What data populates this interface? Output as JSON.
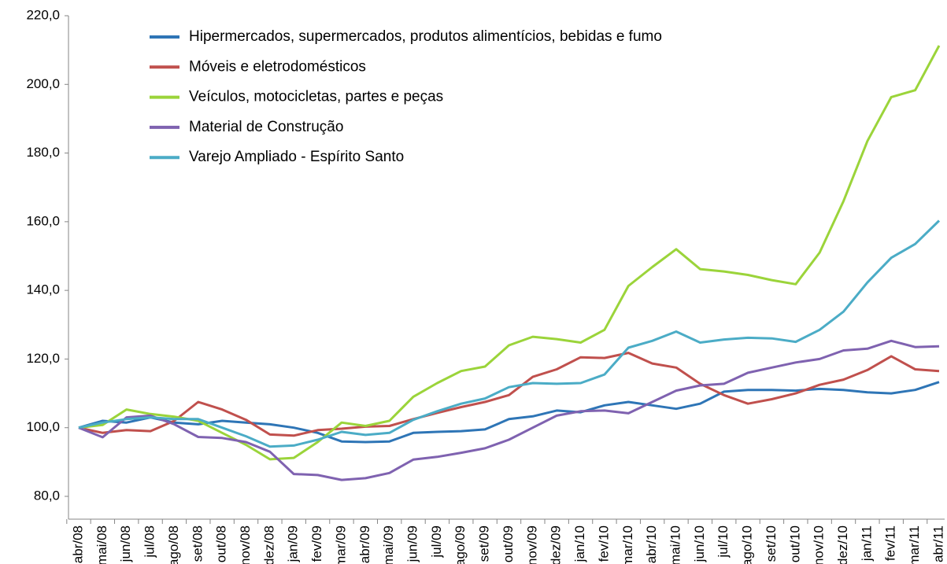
{
  "chart_data": {
    "type": "line",
    "categories": [
      "abr/08",
      "mai/08",
      "jun/08",
      "jul/08",
      "ago/08",
      "set/08",
      "out/08",
      "nov/08",
      "dez/08",
      "jan/09",
      "fev/09",
      "mar/09",
      "abr/09",
      "mai/09",
      "jun/09",
      "jul/09",
      "ago/09",
      "set/09",
      "out/09",
      "nov/09",
      "dez/09",
      "jan/10",
      "fev/10",
      "mar/10",
      "abr/10",
      "mai/10",
      "jun/10",
      "jul/10",
      "ago/10",
      "set/10",
      "out/10",
      "nov/10",
      "dez/10",
      "jan/11",
      "fev/11",
      "mar/11",
      "abr/11"
    ],
    "series": [
      {
        "name": "Hipermercados, supermercados, produtos alimentícios, bebidas e fumo",
        "color": "#2e75b6",
        "values": [
          100,
          102,
          101.5,
          103,
          101.5,
          101,
          102,
          101.5,
          101,
          100,
          98.5,
          96,
          95.8,
          96,
          98.5,
          98.8,
          99,
          99.5,
          102.5,
          103.3,
          105,
          104.5,
          106.5,
          107.5,
          106.5,
          105.5,
          107,
          110.5,
          111,
          111,
          110.8,
          111.3,
          111,
          110.3,
          110,
          111,
          113.3
        ]
      },
      {
        "name": "Móveis e eletrodomésticos",
        "color": "#c0504d",
        "values": [
          100,
          98.5,
          99.3,
          99,
          102,
          107.5,
          105.3,
          102.3,
          98,
          97.7,
          99.3,
          99.7,
          100.3,
          100.5,
          102.5,
          104.3,
          106,
          107.5,
          109.5,
          114.8,
          117,
          120.5,
          120.3,
          121.8,
          118.7,
          117.5,
          112.8,
          109.5,
          107,
          108.3,
          110,
          112.5,
          114,
          116.8,
          120.8,
          117,
          116.5
        ]
      },
      {
        "name": "Veículos, motocicletas, partes e peças",
        "color": "#9bd43a",
        "values": [
          100,
          100.8,
          105.3,
          104,
          103.2,
          102,
          98.5,
          95,
          90.8,
          91.2,
          95.8,
          101.5,
          100.5,
          102,
          109,
          113,
          116.5,
          117.8,
          124,
          126.5,
          125.8,
          124.8,
          128.5,
          141.3,
          146.8,
          152,
          146.2,
          145.5,
          144.5,
          143,
          141.8,
          151,
          166,
          183.5,
          196.3,
          198.3,
          211.3
        ]
      },
      {
        "name": "Material de Construção",
        "color": "#7f62b0",
        "values": [
          100,
          97.2,
          103,
          103.5,
          101,
          97.3,
          97,
          95.8,
          93,
          86.5,
          86.2,
          84.8,
          85.3,
          86.8,
          90.7,
          91.5,
          92.7,
          94,
          96.5,
          100,
          103.5,
          104.8,
          105,
          104.2,
          107.5,
          110.8,
          112.3,
          112.8,
          116,
          117.5,
          119,
          120,
          122.5,
          123,
          125.3,
          123.5,
          123.7
        ]
      },
      {
        "name": "Varejo Ampliado - Espírito Santo",
        "color": "#4bacc6",
        "values": [
          100,
          101.5,
          102.5,
          103,
          102.5,
          102.5,
          100,
          97.5,
          94.5,
          94.8,
          96.5,
          98.8,
          97.9,
          98.5,
          102.3,
          104.8,
          107,
          108.5,
          111.8,
          113,
          112.8,
          113,
          115.5,
          123.3,
          125.3,
          128,
          124.8,
          125.7,
          126.2,
          126,
          125,
          128.5,
          133.8,
          142.3,
          149.5,
          153.5,
          160.3
        ]
      }
    ],
    "ylim": [
      80,
      220
    ],
    "yticks": [
      {
        "value": 80,
        "label": "80,0"
      },
      {
        "value": 100,
        "label": "100,0"
      },
      {
        "value": 120,
        "label": "120,0"
      },
      {
        "value": 140,
        "label": "140,0"
      },
      {
        "value": 160,
        "label": "160,0"
      },
      {
        "value": 180,
        "label": "180,0"
      },
      {
        "value": 200,
        "label": "200,0"
      },
      {
        "value": 220,
        "label": "220,0"
      }
    ]
  }
}
